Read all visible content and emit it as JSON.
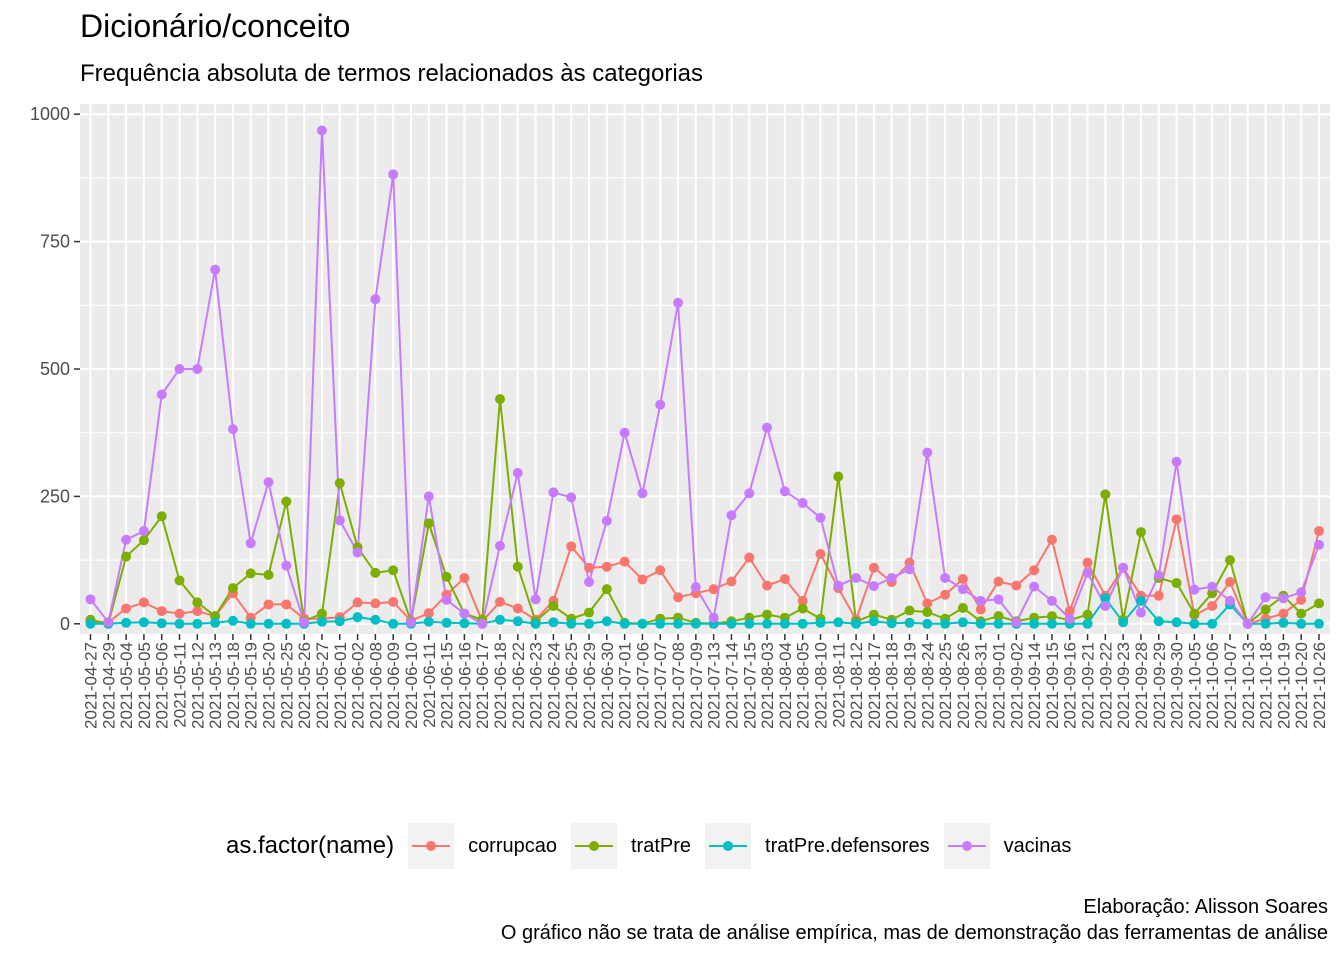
{
  "chart_data": {
    "type": "line",
    "title": "Dicionário/conceito",
    "subtitle": "Frequência absoluta de termos relacionados às categorias",
    "xlabel": "",
    "ylabel": "",
    "ylim": [
      -20,
      1020
    ],
    "yticks": [
      0,
      250,
      500,
      750,
      1000
    ],
    "grid": true,
    "legend_position": "bottom",
    "legend_title": "as.factor(name)",
    "caption": [
      "Elaboração: Alisson Soares",
      "O gráfico não se trata de análise empírica, mas de demonstração das ferramentas de análise"
    ],
    "x": [
      "2021-04-27",
      "2021-04-29",
      "2021-05-04",
      "2021-05-05",
      "2021-05-06",
      "2021-05-11",
      "2021-05-12",
      "2021-05-13",
      "2021-05-18",
      "2021-05-19",
      "2021-05-20",
      "2021-05-25",
      "2021-05-26",
      "2021-05-27",
      "2021-06-01",
      "2021-06-02",
      "2021-06-08",
      "2021-06-09",
      "2021-06-10",
      "2021-06-11",
      "2021-06-15",
      "2021-06-16",
      "2021-06-17",
      "2021-06-18",
      "2021-06-22",
      "2021-06-23",
      "2021-06-24",
      "2021-06-25",
      "2021-06-29",
      "2021-06-30",
      "2021-07-01",
      "2021-07-06",
      "2021-07-07",
      "2021-07-08",
      "2021-07-09",
      "2021-07-13",
      "2021-07-14",
      "2021-07-15",
      "2021-08-03",
      "2021-08-04",
      "2021-08-05",
      "2021-08-10",
      "2021-08-11",
      "2021-08-12",
      "2021-08-17",
      "2021-08-18",
      "2021-08-19",
      "2021-08-24",
      "2021-08-25",
      "2021-08-26",
      "2021-08-31",
      "2021-09-01",
      "2021-09-02",
      "2021-09-14",
      "2021-09-15",
      "2021-09-16",
      "2021-09-21",
      "2021-09-22",
      "2021-09-23",
      "2021-09-28",
      "2021-09-29",
      "2021-09-30",
      "2021-10-05",
      "2021-10-06",
      "2021-10-07",
      "2021-10-13",
      "2021-10-18",
      "2021-10-19",
      "2021-10-20",
      "2021-10-26"
    ],
    "series": [
      {
        "name": "corrupcao",
        "color": "#F8766D",
        "values": [
          3,
          3,
          30,
          42,
          25,
          20,
          25,
          15,
          60,
          12,
          38,
          38,
          10,
          10,
          13,
          42,
          40,
          43,
          6,
          21,
          57,
          90,
          5,
          43,
          30,
          8,
          45,
          152,
          110,
          112,
          122,
          87,
          105,
          52,
          60,
          68,
          83,
          130,
          75,
          88,
          45,
          137,
          70,
          8,
          110,
          82,
          120,
          40,
          57,
          88,
          28,
          83,
          75,
          105,
          165,
          25,
          120,
          55,
          110,
          55,
          55,
          205,
          17,
          35,
          82,
          0,
          10,
          20,
          47,
          182
        ]
      },
      {
        "name": "tratPre",
        "color": "#7CAE00",
        "values": [
          8,
          0,
          132,
          164,
          211,
          85,
          42,
          15,
          70,
          99,
          96,
          240,
          5,
          20,
          276,
          150,
          100,
          105,
          5,
          197,
          92,
          20,
          8,
          441,
          112,
          5,
          35,
          10,
          22,
          68,
          2,
          0,
          10,
          12,
          2,
          0,
          5,
          12,
          18,
          12,
          30,
          10,
          289,
          5,
          18,
          8,
          26,
          23,
          10,
          31,
          5,
          15,
          5,
          12,
          15,
          7,
          18,
          254,
          8,
          180,
          90,
          80,
          20,
          60,
          125,
          0,
          28,
          55,
          20,
          40
        ]
      },
      {
        "name": "tratPre.defensores",
        "color": "#00BFC4",
        "values": [
          0,
          0,
          2,
          3,
          1,
          0,
          0,
          2,
          6,
          0,
          0,
          0,
          0,
          4,
          5,
          13,
          8,
          0,
          0,
          4,
          2,
          1,
          0,
          8,
          5,
          0,
          3,
          0,
          0,
          5,
          0,
          0,
          0,
          0,
          0,
          0,
          0,
          0,
          0,
          0,
          0,
          2,
          3,
          0,
          5,
          1,
          2,
          0,
          0,
          3,
          0,
          0,
          0,
          0,
          0,
          0,
          0,
          50,
          3,
          45,
          5,
          3,
          0,
          0,
          38,
          0,
          0,
          2,
          0,
          0
        ]
      },
      {
        "name": "vacinas",
        "color": "#C77CFF",
        "values": [
          48,
          3,
          165,
          182,
          450,
          500,
          500,
          695,
          382,
          158,
          278,
          114,
          3,
          968,
          203,
          140,
          637,
          882,
          3,
          250,
          47,
          20,
          0,
          153,
          296,
          48,
          258,
          248,
          82,
          202,
          375,
          256,
          430,
          630,
          72,
          12,
          213,
          256,
          385,
          260,
          237,
          208,
          75,
          90,
          74,
          90,
          107,
          336,
          90,
          68,
          45,
          48,
          3,
          73,
          45,
          10,
          100,
          35,
          110,
          22,
          95,
          318,
          67,
          73,
          45,
          0,
          52,
          50,
          62,
          155
        ]
      }
    ]
  }
}
